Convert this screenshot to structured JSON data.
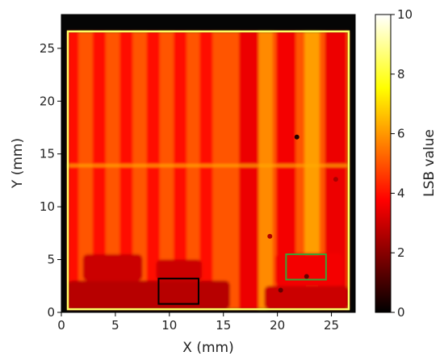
{
  "chart_data": {
    "type": "heatmap",
    "title": "",
    "xlabel": "X (mm)",
    "ylabel": "Y (mm)",
    "xlim": [
      0,
      27.2
    ],
    "ylim": [
      0,
      28.2
    ],
    "x_ticks": [
      "0",
      "5",
      "10",
      "15",
      "20",
      "25"
    ],
    "y_ticks": [
      "0",
      "5",
      "10",
      "15",
      "20",
      "25"
    ],
    "colorbar": {
      "label": "LSB value",
      "range": [
        0,
        10
      ],
      "ticks": [
        "0",
        "2",
        "4",
        "6",
        "8",
        "10"
      ],
      "colormap": "hot"
    },
    "sample_area": {
      "x": [
        0.6,
        26.6
      ],
      "y": [
        0.3,
        26.6
      ]
    },
    "background_lsb": 0.3,
    "base_lsb": 5.0,
    "stripes": [
      {
        "x_center": 1.0,
        "width": 1.2,
        "lsb": 3.9
      },
      {
        "x_center": 3.5,
        "width": 1.2,
        "lsb": 3.9
      },
      {
        "x_center": 6.0,
        "width": 1.2,
        "lsb": 3.9
      },
      {
        "x_center": 8.5,
        "width": 1.2,
        "lsb": 3.9
      },
      {
        "x_center": 11.0,
        "width": 1.2,
        "lsb": 3.9
      },
      {
        "x_center": 13.4,
        "width": 1.2,
        "lsb": 4.0
      },
      {
        "x_center": 17.4,
        "width": 1.9,
        "lsb": 3.5
      },
      {
        "x_center": 20.8,
        "width": 1.8,
        "lsb": 3.6
      },
      {
        "x_center": 25.4,
        "width": 2.0,
        "lsb": 3.5
      }
    ],
    "bright_bands": [
      {
        "x_center": 18.9,
        "width": 1.3,
        "lsb": 5.8
      },
      {
        "x_center": 23.2,
        "width": 1.4,
        "lsb": 6.1
      }
    ],
    "horizontal_line": {
      "y": 13.9,
      "lsb": 6.3
    },
    "dark_regions": [
      {
        "x": [
          0.6,
          15.6
        ],
        "y": [
          0.3,
          3.0
        ],
        "lsb": 2.7
      },
      {
        "x": [
          2.0,
          7.5
        ],
        "y": [
          3.0,
          5.5
        ],
        "lsb": 3.0
      },
      {
        "x": [
          8.8,
          13.0
        ],
        "y": [
          3.0,
          5.0
        ],
        "lsb": 3.0
      },
      {
        "x": [
          18.8,
          26.6
        ],
        "y": [
          0.3,
          2.5
        ],
        "lsb": 3.0
      },
      {
        "x": [
          19.8,
          26.0
        ],
        "y": [
          2.5,
          5.6
        ],
        "lsb": 3.6
      }
    ],
    "dark_spots": [
      {
        "x": 21.8,
        "y": 16.6,
        "lsb": 0.5
      },
      {
        "x": 25.4,
        "y": 12.6,
        "lsb": 2.5
      },
      {
        "x": 19.3,
        "y": 7.2,
        "lsb": 2.6
      },
      {
        "x": 20.3,
        "y": 2.1,
        "lsb": 1.5
      },
      {
        "x": 22.7,
        "y": 3.4,
        "lsb": 1.5
      }
    ],
    "rectangles": [
      {
        "name": "black-roi",
        "x": [
          9.0,
          12.7
        ],
        "y": [
          0.8,
          3.2
        ],
        "color": "#000000"
      },
      {
        "name": "green-roi",
        "x": [
          20.8,
          24.5
        ],
        "y": [
          3.1,
          5.5
        ],
        "color": "#3aa335"
      }
    ]
  }
}
